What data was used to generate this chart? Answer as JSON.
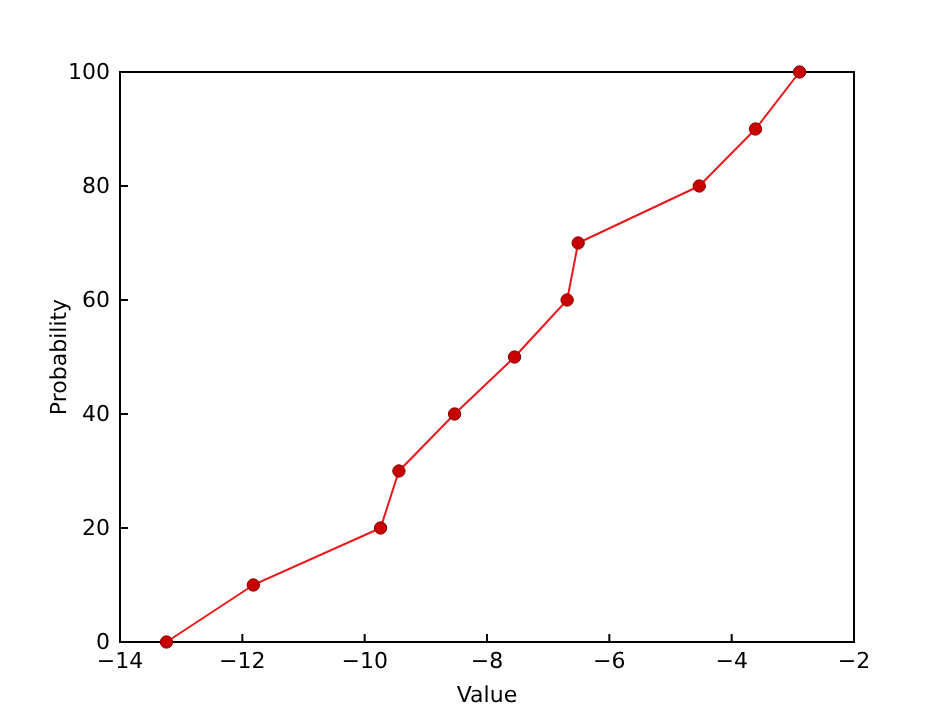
{
  "chart_data": {
    "type": "line",
    "xlabel": "Value",
    "ylabel": "Probability",
    "x": [
      -13.24,
      -11.82,
      -9.74,
      -9.44,
      -8.53,
      -7.55,
      -6.69,
      -6.51,
      -4.53,
      -3.61,
      -2.89
    ],
    "series": [
      {
        "color": "#e8191c",
        "values": [
          0,
          10,
          20,
          30,
          40,
          50,
          60,
          70,
          80,
          90,
          100
        ]
      }
    ],
    "xlim": [
      -14,
      -2
    ],
    "xticks": [
      {
        "value": -14,
        "label": "−14"
      },
      {
        "value": -12,
        "label": "−12"
      },
      {
        "value": -10,
        "label": "−10"
      },
      {
        "value": -8,
        "label": "−8"
      },
      {
        "value": -6,
        "label": "−6"
      },
      {
        "value": -4,
        "label": "−4"
      },
      {
        "value": -2,
        "label": "−2"
      }
    ],
    "ylim": [
      0,
      100
    ],
    "yticks": [
      0,
      20,
      40,
      60,
      80,
      100
    ],
    "marker": "circle",
    "line_style": "solid",
    "grid": false
  }
}
